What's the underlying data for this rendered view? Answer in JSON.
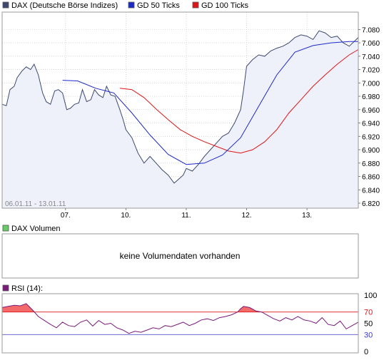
{
  "legend": [
    {
      "label": "DAX (Deutsche Börse Indizes)",
      "color": "#3d4a6e"
    },
    {
      "label": "GD 50 Ticks",
      "color": "#1e2ac8"
    },
    {
      "label": "GD 100 Ticks",
      "color": "#e01616"
    }
  ],
  "date_range": "06.01.11 - 13.01.11",
  "volume": {
    "legend": "DAX Volumen",
    "legend_color": "#66cc66",
    "message": "keine Volumendaten vorhanden"
  },
  "rsi": {
    "legend": "RSI (14):",
    "legend_color": "#7a1a7a"
  },
  "colors": {
    "price_line": "#3d4a6e",
    "price_fill": "#eef0fa",
    "gd50": "#1e2ac8",
    "gd100": "#e01616",
    "rsi_line": "#7a1a7a",
    "rsi_overbought_fill": "#f26a6a",
    "grid": "#bdbdbd",
    "frame": "#9a9a9a"
  },
  "chart_data": [
    {
      "type": "line",
      "series_name": "DAX (Deutsche Börse Indizes)",
      "x_ticks": [
        "07.",
        "10.",
        "11.",
        "12.",
        "13."
      ],
      "x_tick_pos": [
        0.1,
        1.1,
        2.1,
        3.1,
        4.1
      ],
      "x_range": [
        -0.95,
        4.95
      ],
      "ylim": [
        6820,
        7090
      ],
      "y_ticks": [
        6820,
        6840,
        6860,
        6880,
        6900,
        6920,
        6940,
        6960,
        6980,
        7000,
        7020,
        7040,
        7060,
        7080
      ],
      "y_tick_labels": [
        "6.820",
        "6.840",
        "6.860",
        "6.880",
        "6.900",
        "6.920",
        "6.940",
        "6.960",
        "6.980",
        "7.000",
        "7.020",
        "7.040",
        "7.060",
        "7.080"
      ],
      "grid": true,
      "series": [
        {
          "name": "DAX (Deutsche Börse Indizes)",
          "color": "#3d4a6e",
          "fill": "#eef0fa",
          "x": [
            -0.95,
            -0.88,
            -0.82,
            -0.75,
            -0.7,
            -0.62,
            -0.55,
            -0.48,
            -0.42,
            -0.35,
            -0.28,
            -0.22,
            -0.15,
            -0.08,
            -0.02,
            0.05,
            0.12,
            0.18,
            0.25,
            0.32,
            0.38,
            0.45,
            0.52,
            0.58,
            0.65,
            0.72,
            0.78,
            0.85,
            0.92,
            1.0,
            1.05,
            1.1,
            1.2,
            1.3,
            1.4,
            1.5,
            1.6,
            1.7,
            1.8,
            1.9,
            2.0,
            2.05,
            2.1,
            2.2,
            2.3,
            2.4,
            2.5,
            2.6,
            2.7,
            2.8,
            2.9,
            3.0,
            3.05,
            3.1,
            3.2,
            3.3,
            3.4,
            3.5,
            3.6,
            3.7,
            3.8,
            3.9,
            4.0,
            4.1,
            4.2,
            4.3,
            4.4,
            4.5,
            4.6,
            4.7,
            4.8,
            4.95
          ],
          "y": [
            6968,
            6966,
            6990,
            6995,
            7008,
            7018,
            7024,
            7020,
            7028,
            7012,
            6985,
            6972,
            6968,
            6988,
            6990,
            6985,
            6960,
            6962,
            6968,
            6970,
            6990,
            6972,
            6975,
            6990,
            6982,
            6978,
            6995,
            6982,
            6980,
            6960,
            6946,
            6930,
            6918,
            6895,
            6880,
            6890,
            6880,
            6870,
            6862,
            6850,
            6858,
            6862,
            6872,
            6868,
            6878,
            6890,
            6900,
            6910,
            6920,
            6925,
            6940,
            6960,
            6990,
            7025,
            7035,
            7042,
            7040,
            7048,
            7052,
            7055,
            7060,
            7068,
            7072,
            7070,
            7065,
            7078,
            7075,
            7068,
            7070,
            7060,
            7055,
            7068
          ]
        },
        {
          "name": "GD 50 Ticks",
          "color": "#1e2ac8",
          "x": [
            0.05,
            0.3,
            0.6,
            0.9,
            1.2,
            1.5,
            1.8,
            2.1,
            2.4,
            2.7,
            3.0,
            3.3,
            3.6,
            3.9,
            4.2,
            4.5,
            4.8,
            4.95
          ],
          "y": [
            7004,
            7003,
            6992,
            6985,
            6955,
            6922,
            6893,
            6878,
            6880,
            6892,
            6918,
            6965,
            7012,
            7046,
            7056,
            7060,
            7062,
            7062
          ]
        },
        {
          "name": "GD 100 Ticks",
          "color": "#e01616",
          "x": [
            1.0,
            1.2,
            1.4,
            1.6,
            1.8,
            2.0,
            2.2,
            2.4,
            2.6,
            2.8,
            3.0,
            3.2,
            3.4,
            3.6,
            3.8,
            4.0,
            4.2,
            4.4,
            4.6,
            4.8,
            4.95
          ],
          "y": [
            6992,
            6990,
            6978,
            6961,
            6945,
            6930,
            6920,
            6912,
            6905,
            6898,
            6895,
            6900,
            6912,
            6930,
            6955,
            6975,
            6995,
            7012,
            7028,
            7042,
            7050
          ]
        }
      ]
    },
    {
      "type": "line",
      "series_name": "RSI (14):",
      "x_range": [
        -0.95,
        4.95
      ],
      "ylim": [
        0,
        100
      ],
      "y_ticks_right": [
        100,
        70,
        50,
        30,
        0
      ],
      "y_tick_labels": [
        "100",
        "70",
        "50",
        "30",
        "0"
      ],
      "reference_lines": [
        {
          "value": 70,
          "color": "#e01616"
        },
        {
          "value": 30,
          "color": "#5555cc"
        }
      ],
      "series": [
        {
          "name": "RSI",
          "color": "#7a1a7a",
          "x": [
            -0.95,
            -0.85,
            -0.75,
            -0.65,
            -0.55,
            -0.45,
            -0.35,
            -0.25,
            -0.15,
            -0.05,
            0.05,
            0.15,
            0.25,
            0.35,
            0.45,
            0.55,
            0.65,
            0.75,
            0.85,
            0.95,
            1.05,
            1.15,
            1.25,
            1.35,
            1.45,
            1.55,
            1.65,
            1.75,
            1.85,
            1.95,
            2.05,
            2.15,
            2.25,
            2.35,
            2.45,
            2.55,
            2.65,
            2.75,
            2.85,
            2.95,
            3.0,
            3.05,
            3.15,
            3.25,
            3.35,
            3.45,
            3.55,
            3.65,
            3.75,
            3.85,
            3.95,
            4.05,
            4.15,
            4.25,
            4.35,
            4.45,
            4.55,
            4.65,
            4.75,
            4.85,
            4.95
          ],
          "y": [
            78,
            80,
            82,
            81,
            85,
            74,
            62,
            55,
            48,
            42,
            52,
            46,
            44,
            52,
            56,
            45,
            55,
            48,
            50,
            42,
            38,
            32,
            36,
            34,
            38,
            42,
            40,
            46,
            44,
            48,
            52,
            46,
            50,
            56,
            58,
            55,
            60,
            62,
            65,
            70,
            76,
            80,
            78,
            72,
            70,
            64,
            58,
            54,
            60,
            56,
            62,
            56,
            54,
            50,
            60,
            48,
            46,
            54,
            40,
            46,
            52
          ]
        }
      ]
    }
  ]
}
